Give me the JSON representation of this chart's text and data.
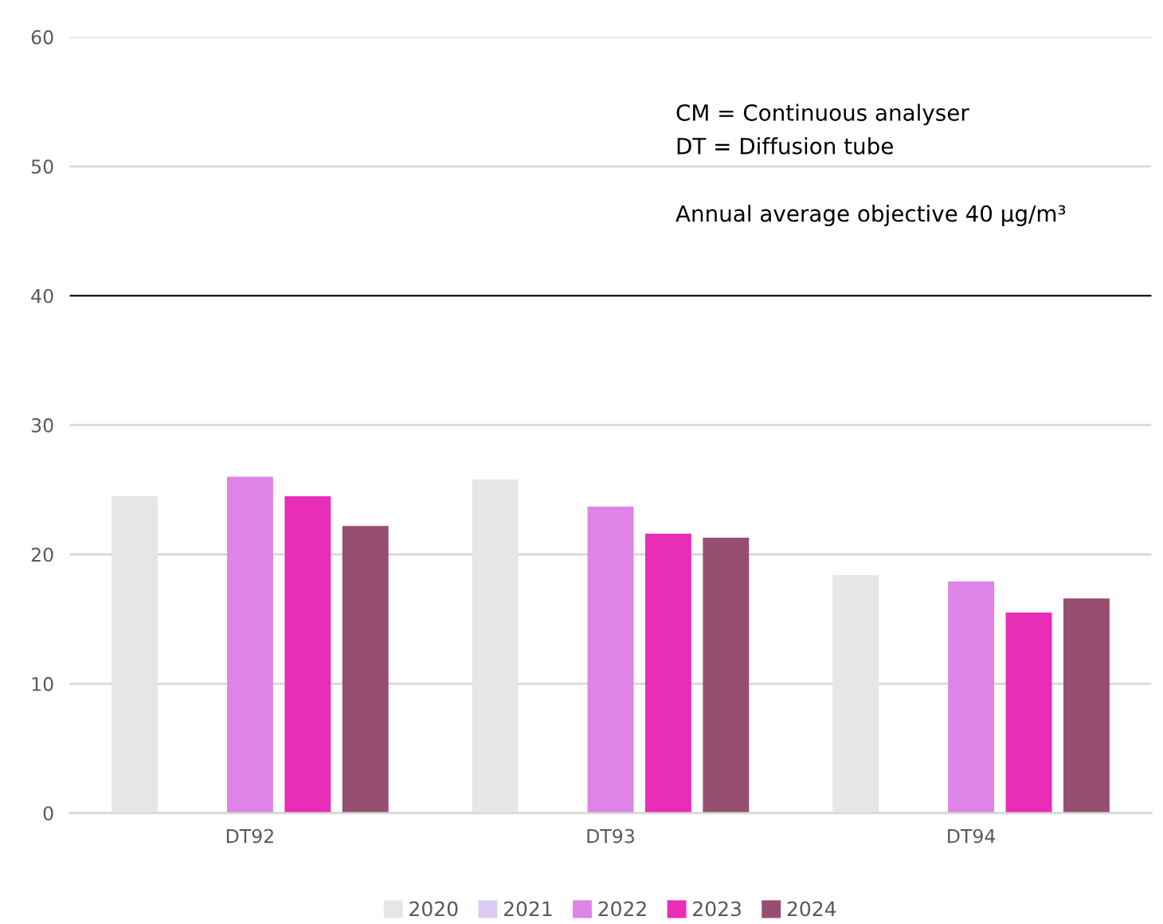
{
  "chart_data": {
    "type": "bar",
    "categories": [
      "DT92",
      "DT93",
      "DT94"
    ],
    "series": [
      {
        "name": "2020",
        "color": "#e6e6e6",
        "values": [
          24.5,
          25.8,
          18.4
        ]
      },
      {
        "name": "2021",
        "color": "#dccbf2",
        "values": [
          null,
          null,
          null
        ]
      },
      {
        "name": "2022",
        "color": "#dd84e6",
        "values": [
          26.0,
          23.7,
          17.9
        ]
      },
      {
        "name": "2023",
        "color": "#e82db6",
        "values": [
          24.5,
          21.6,
          15.5
        ]
      },
      {
        "name": "2024",
        "color": "#964f70",
        "values": [
          22.2,
          21.3,
          16.6
        ]
      }
    ],
    "ylim": [
      0,
      60
    ],
    "yticks": [
      0,
      10,
      20,
      30,
      40,
      50,
      60
    ],
    "grid": "y",
    "legend": "bottom",
    "ref_lines": [
      {
        "axis": "y",
        "value": 40,
        "color": "#000000"
      }
    ],
    "annotations": [
      "CM = Continuous analyser",
      "DT = Diffusion tube",
      "Annual average objective 40 µg/m³"
    ]
  }
}
